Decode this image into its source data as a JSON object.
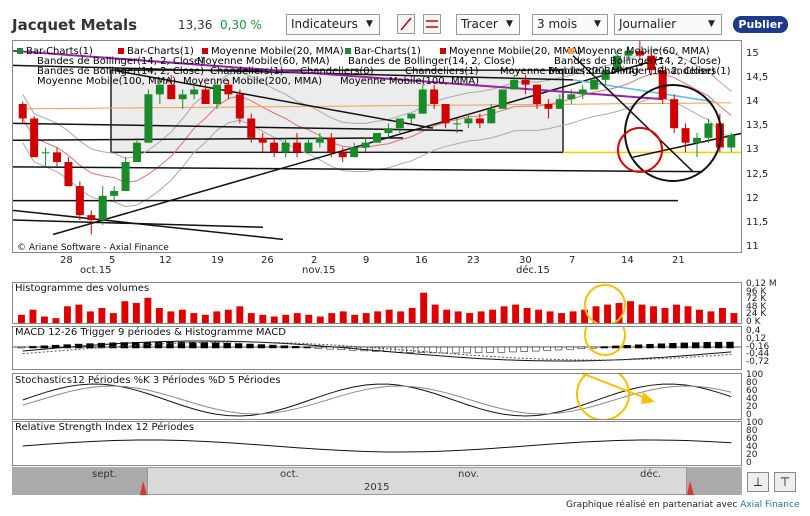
{
  "header": {
    "title": "Jacquet Metals",
    "price": "13,36",
    "change": "0,30 %",
    "indicators_label": "Indicateurs",
    "draw_label": "Tracer",
    "period": "3 mois",
    "interval": "Journalier",
    "publish_label": "Publier"
  },
  "legend": {
    "row1": [
      {
        "text": "Bar-Charts(1)",
        "color": "#1a8a2a"
      },
      {
        "text": "Bar-Charts(1)",
        "color": "#d00000"
      },
      {
        "text": "Moyenne Mobile(20, MMA)",
        "color": "#d00000"
      },
      {
        "text": "Bar-Charts(1)",
        "color": "#1a8a2a"
      },
      {
        "text": "Moyenne Mobile(20, MMA)",
        "color": "#d00000"
      },
      {
        "text": "Moyenne Mobile(60, MMA)",
        "color": "#f0a050"
      }
    ],
    "row2": [
      "Bandes de Bollinger(14, 2, Close)",
      "Moyenne Mobile(60, MMA)",
      "Bandes de Bollinger(14, 2, Close)",
      "Bandes de Bollinger(14, 2, Close)"
    ],
    "row3": [
      "Bandes de Bollinger(14, 2, Close)",
      "Chandeliers(1)",
      "Chandeliers(0)",
      "Chandeliers(1)",
      "Moyenne Mobile(200, MMA)",
      "Bandes de Bollinger(14, 2, Close)",
      "Chandeliers(1)"
    ],
    "row4": [
      "Moyenne Mobile(100, MMA)",
      "Moyenne Mobile(200, MMA)",
      "Moyenne Mobile(100, MMA)"
    ]
  },
  "price_axis": [
    "15",
    "14,5",
    "14",
    "13,5",
    "13",
    "12,5",
    "12",
    "11,5",
    "11"
  ],
  "date_labels": [
    "28",
    "5",
    "12",
    "19",
    "26",
    "2",
    "9",
    "16",
    "23",
    "30",
    "7",
    "14",
    "21"
  ],
  "month_labels": [
    "oct.15",
    "nov.15",
    "déc.15"
  ],
  "copyright": "© Ariane Software - Axial Finance",
  "volume": {
    "title": "Histogramme des volumes",
    "axis": [
      "0,12 M",
      "96 K",
      "72 K",
      "48 K",
      "24 K",
      "0 K"
    ]
  },
  "macd": {
    "title": "MACD 12-26   Trigger 9 périodes & Histogramme MACD",
    "axis": [
      "0,4",
      "0,12",
      "-0,16",
      "-0,44",
      "-0,72"
    ]
  },
  "stoch": {
    "title": "Stochastics12 Périodes   %K 3 Périodes   %D 5 Périodes",
    "axis": [
      "100",
      "80",
      "60",
      "40",
      "20",
      "0"
    ]
  },
  "rsi": {
    "title": "Relative Strength Index 12 Périodes",
    "axis": [
      "100",
      "80",
      "60",
      "40",
      "20",
      "0"
    ]
  },
  "navigator": {
    "months": [
      "sept.",
      "oct.",
      "nov.",
      "déc."
    ],
    "year": "2015"
  },
  "footer": {
    "text": "Graphique réalisé en partenariat avec ",
    "link": "Axial Finance"
  },
  "candles": [
    {
      "o": 14.0,
      "h": 14.05,
      "l": 13.6,
      "c": 13.7
    },
    {
      "o": 13.7,
      "h": 13.75,
      "l": 12.9,
      "c": 12.9
    },
    {
      "o": 13.0,
      "h": 13.1,
      "l": 12.7,
      "c": 13.0
    },
    {
      "o": 13.0,
      "h": 13.1,
      "l": 12.7,
      "c": 12.8
    },
    {
      "o": 12.8,
      "h": 12.9,
      "l": 12.3,
      "c": 12.3
    },
    {
      "o": 12.3,
      "h": 12.4,
      "l": 11.6,
      "c": 11.7
    },
    {
      "o": 11.7,
      "h": 11.8,
      "l": 11.3,
      "c": 11.6
    },
    {
      "o": 11.6,
      "h": 12.3,
      "l": 11.5,
      "c": 12.1
    },
    {
      "o": 12.1,
      "h": 12.3,
      "l": 12.0,
      "c": 12.2
    },
    {
      "o": 12.2,
      "h": 12.9,
      "l": 12.2,
      "c": 12.8
    },
    {
      "o": 12.8,
      "h": 13.3,
      "l": 12.8,
      "c": 13.2
    },
    {
      "o": 13.2,
      "h": 14.3,
      "l": 13.2,
      "c": 14.2
    },
    {
      "o": 14.2,
      "h": 14.5,
      "l": 14.0,
      "c": 14.4
    },
    {
      "o": 14.4,
      "h": 14.6,
      "l": 14.1,
      "c": 14.1
    },
    {
      "o": 14.1,
      "h": 14.3,
      "l": 13.9,
      "c": 14.2
    },
    {
      "o": 14.2,
      "h": 14.4,
      "l": 14.1,
      "c": 14.3
    },
    {
      "o": 14.3,
      "h": 14.4,
      "l": 14.0,
      "c": 14.0
    },
    {
      "o": 14.0,
      "h": 14.4,
      "l": 13.9,
      "c": 14.4
    },
    {
      "o": 14.4,
      "h": 14.5,
      "l": 14.1,
      "c": 14.2
    },
    {
      "o": 14.2,
      "h": 14.3,
      "l": 13.6,
      "c": 13.7
    },
    {
      "o": 13.7,
      "h": 13.8,
      "l": 13.2,
      "c": 13.3
    },
    {
      "o": 13.3,
      "h": 13.4,
      "l": 13.0,
      "c": 13.2
    },
    {
      "o": 13.2,
      "h": 13.3,
      "l": 12.9,
      "c": 13.0
    },
    {
      "o": 13.0,
      "h": 13.3,
      "l": 12.9,
      "c": 13.2
    },
    {
      "o": 13.2,
      "h": 13.4,
      "l": 12.9,
      "c": 13.0
    },
    {
      "o": 13.0,
      "h": 13.3,
      "l": 13.0,
      "c": 13.2
    },
    {
      "o": 13.2,
      "h": 13.4,
      "l": 13.1,
      "c": 13.3
    },
    {
      "o": 13.3,
      "h": 13.4,
      "l": 12.9,
      "c": 13.0
    },
    {
      "o": 13.0,
      "h": 13.1,
      "l": 12.8,
      "c": 12.9
    },
    {
      "o": 12.9,
      "h": 13.2,
      "l": 12.9,
      "c": 13.1
    },
    {
      "o": 13.1,
      "h": 13.3,
      "l": 13.0,
      "c": 13.2
    },
    {
      "o": 13.2,
      "h": 13.4,
      "l": 13.2,
      "c": 13.4
    },
    {
      "o": 13.4,
      "h": 13.6,
      "l": 13.3,
      "c": 13.5
    },
    {
      "o": 13.5,
      "h": 13.7,
      "l": 13.4,
      "c": 13.7
    },
    {
      "o": 13.7,
      "h": 13.8,
      "l": 13.6,
      "c": 13.8
    },
    {
      "o": 13.8,
      "h": 14.4,
      "l": 13.8,
      "c": 14.3
    },
    {
      "o": 14.3,
      "h": 14.4,
      "l": 13.9,
      "c": 14.0
    },
    {
      "o": 14.0,
      "h": 14.0,
      "l": 13.5,
      "c": 13.6
    },
    {
      "o": 13.6,
      "h": 13.7,
      "l": 13.4,
      "c": 13.6
    },
    {
      "o": 13.6,
      "h": 13.8,
      "l": 13.5,
      "c": 13.7
    },
    {
      "o": 13.7,
      "h": 13.8,
      "l": 13.5,
      "c": 13.6
    },
    {
      "o": 13.6,
      "h": 14.0,
      "l": 13.6,
      "c": 13.9
    },
    {
      "o": 13.9,
      "h": 14.3,
      "l": 13.9,
      "c": 14.3
    },
    {
      "o": 14.3,
      "h": 14.6,
      "l": 14.3,
      "c": 14.5
    },
    {
      "o": 14.5,
      "h": 14.6,
      "l": 14.2,
      "c": 14.4
    },
    {
      "o": 14.4,
      "h": 14.4,
      "l": 13.9,
      "c": 14.0
    },
    {
      "o": 14.0,
      "h": 14.1,
      "l": 13.7,
      "c": 13.9
    },
    {
      "o": 13.9,
      "h": 14.2,
      "l": 13.9,
      "c": 14.1
    },
    {
      "o": 14.1,
      "h": 14.3,
      "l": 14.0,
      "c": 14.2
    },
    {
      "o": 14.2,
      "h": 14.4,
      "l": 14.1,
      "c": 14.3
    },
    {
      "o": 14.3,
      "h": 14.6,
      "l": 14.3,
      "c": 14.5
    },
    {
      "o": 14.5,
      "h": 14.8,
      "l": 14.4,
      "c": 14.7
    },
    {
      "o": 14.7,
      "h": 15.1,
      "l": 14.7,
      "c": 15.0
    },
    {
      "o": 15.0,
      "h": 15.2,
      "l": 14.9,
      "c": 15.1
    },
    {
      "o": 15.1,
      "h": 15.3,
      "l": 14.9,
      "c": 15.0
    },
    {
      "o": 15.0,
      "h": 15.1,
      "l": 14.6,
      "c": 14.7
    },
    {
      "o": 14.7,
      "h": 14.8,
      "l": 14.0,
      "c": 14.1
    },
    {
      "o": 14.1,
      "h": 14.2,
      "l": 13.4,
      "c": 13.5
    },
    {
      "o": 13.5,
      "h": 13.6,
      "l": 13.0,
      "c": 13.2
    },
    {
      "o": 13.2,
      "h": 13.4,
      "l": 12.9,
      "c": 13.3
    },
    {
      "o": 13.3,
      "h": 13.7,
      "l": 13.2,
      "c": 13.6
    },
    {
      "o": 13.6,
      "h": 13.8,
      "l": 13.0,
      "c": 13.1
    },
    {
      "o": 13.1,
      "h": 13.4,
      "l": 13.0,
      "c": 13.36
    }
  ],
  "volumes": [
    30,
    45,
    25,
    20,
    55,
    60,
    40,
    50,
    35,
    70,
    65,
    80,
    50,
    40,
    45,
    35,
    30,
    40,
    45,
    55,
    35,
    30,
    25,
    30,
    35,
    30,
    25,
    35,
    40,
    30,
    35,
    40,
    45,
    40,
    50,
    95,
    60,
    45,
    40,
    35,
    40,
    45,
    55,
    60,
    50,
    45,
    40,
    35,
    40,
    45,
    55,
    60,
    65,
    70,
    60,
    55,
    50,
    60,
    55,
    45,
    40,
    50,
    35
  ]
}
